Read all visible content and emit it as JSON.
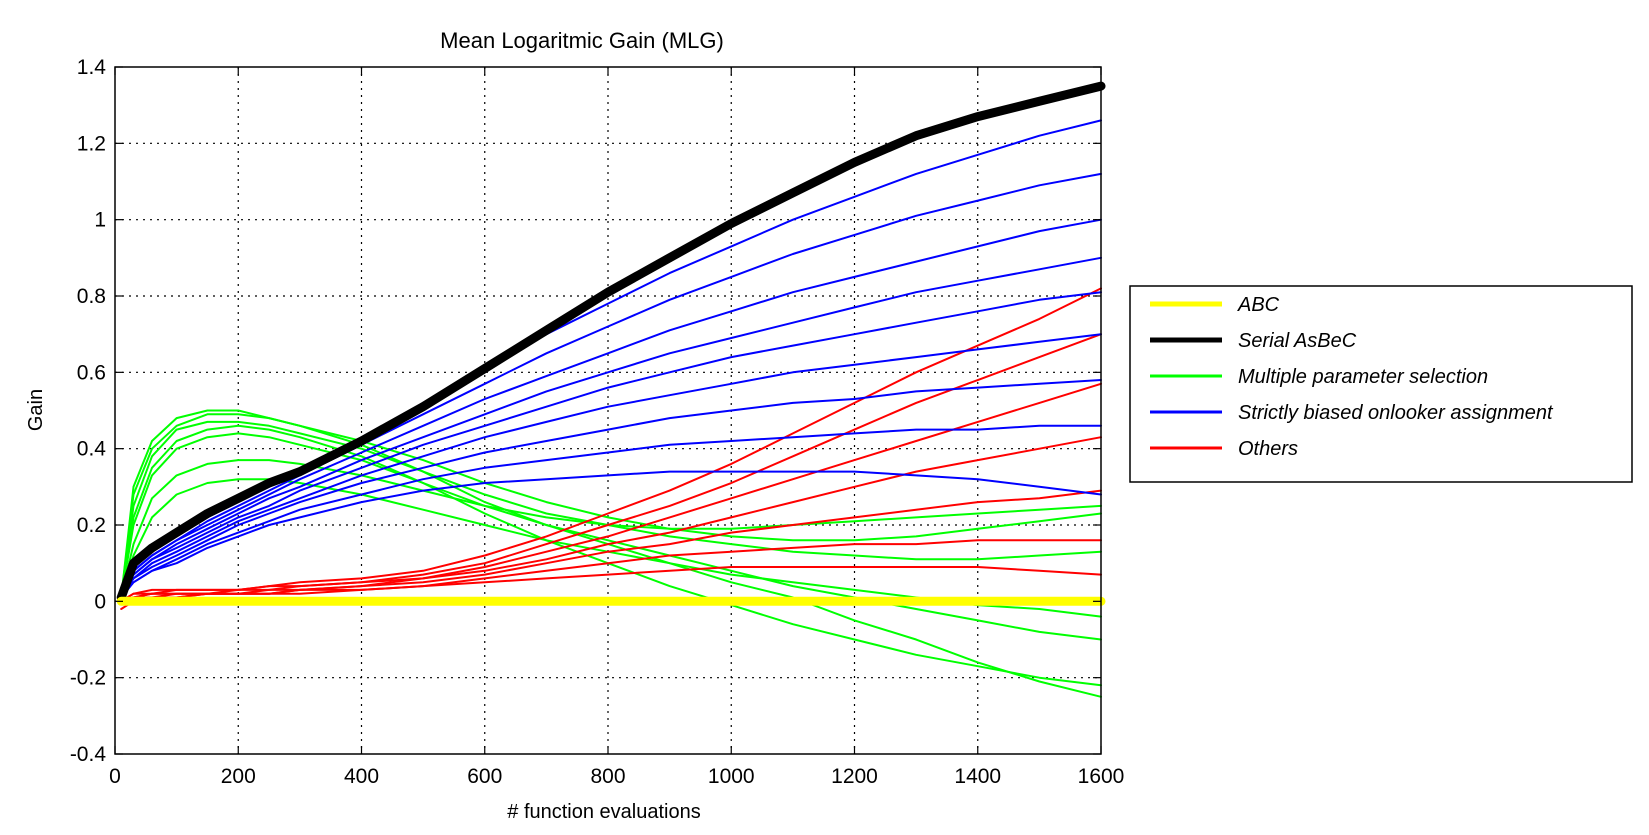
{
  "chart_data": {
    "type": "line",
    "title": "Mean Logaritmic Gain (MLG)",
    "xlabel": "# function evaluations",
    "ylabel": "Gain",
    "xlim": [
      0,
      1600
    ],
    "ylim": [
      -0.4,
      1.4
    ],
    "x_ticks": [
      "0",
      "200",
      "400",
      "600",
      "800",
      "1000",
      "1200",
      "1400",
      "1600"
    ],
    "y_ticks": [
      "-0.4",
      "-0.2",
      "0",
      "0.2",
      "0.4",
      "0.6",
      "0.8",
      "1",
      "1.2",
      "1.4"
    ],
    "grid": true,
    "legend_position": "outside-right",
    "x": [
      10,
      30,
      60,
      100,
      150,
      200,
      250,
      300,
      400,
      500,
      600,
      700,
      800,
      900,
      1000,
      1100,
      1200,
      1300,
      1400,
      1500,
      1600
    ],
    "series": [
      {
        "name": "ABC",
        "color": "#ffff00",
        "width": 9,
        "values": [
          0,
          0,
          0,
          0,
          0,
          0,
          0,
          0,
          0,
          0,
          0,
          0,
          0,
          0,
          0,
          0,
          0,
          0,
          0,
          0,
          0
        ]
      },
      {
        "name": "Serial AsBeC",
        "color": "#000000",
        "width": 9,
        "values": [
          0.01,
          0.1,
          0.14,
          0.18,
          0.23,
          0.27,
          0.31,
          0.34,
          0.42,
          0.51,
          0.61,
          0.71,
          0.81,
          0.9,
          0.99,
          1.07,
          1.15,
          1.22,
          1.27,
          1.31,
          1.35
        ]
      },
      {
        "name": "Multiple parameter selection",
        "color": "#00ff00",
        "width": 2,
        "group_values": [
          [
            0.01,
            0.3,
            0.42,
            0.48,
            0.5,
            0.5,
            0.48,
            0.46,
            0.41,
            0.34,
            0.26,
            0.2,
            0.15,
            0.1,
            0.05,
            0.01,
            -0.05,
            -0.1,
            -0.16,
            -0.21,
            -0.25
          ],
          [
            0.01,
            0.25,
            0.38,
            0.45,
            0.47,
            0.47,
            0.46,
            0.44,
            0.4,
            0.34,
            0.28,
            0.23,
            0.2,
            0.17,
            0.15,
            0.13,
            0.12,
            0.11,
            0.11,
            0.12,
            0.13
          ],
          [
            0.01,
            0.2,
            0.33,
            0.4,
            0.43,
            0.44,
            0.43,
            0.41,
            0.37,
            0.31,
            0.25,
            0.2,
            0.16,
            0.12,
            0.08,
            0.04,
            0.01,
            -0.02,
            -0.05,
            -0.08,
            -0.1
          ],
          [
            0.01,
            0.15,
            0.27,
            0.33,
            0.36,
            0.37,
            0.37,
            0.36,
            0.33,
            0.29,
            0.25,
            0.22,
            0.2,
            0.19,
            0.19,
            0.2,
            0.21,
            0.22,
            0.23,
            0.24,
            0.25
          ],
          [
            0.01,
            0.12,
            0.22,
            0.28,
            0.31,
            0.32,
            0.32,
            0.31,
            0.28,
            0.24,
            0.2,
            0.16,
            0.13,
            0.1,
            0.07,
            0.05,
            0.03,
            0.01,
            -0.01,
            -0.02,
            -0.04
          ],
          [
            0.01,
            0.28,
            0.4,
            0.46,
            0.49,
            0.49,
            0.48,
            0.46,
            0.42,
            0.37,
            0.31,
            0.26,
            0.22,
            0.19,
            0.17,
            0.16,
            0.16,
            0.17,
            0.19,
            0.21,
            0.23
          ],
          [
            0.01,
            0.22,
            0.35,
            0.42,
            0.45,
            0.46,
            0.45,
            0.43,
            0.38,
            0.31,
            0.23,
            0.16,
            0.1,
            0.04,
            -0.01,
            -0.06,
            -0.1,
            -0.14,
            -0.17,
            -0.2,
            -0.22
          ]
        ]
      },
      {
        "name": "Strictly biased onlooker assignment",
        "color": "#0000ff",
        "width": 2,
        "group_values": [
          [
            0.01,
            0.09,
            0.13,
            0.17,
            0.22,
            0.26,
            0.3,
            0.34,
            0.42,
            0.52,
            0.61,
            0.7,
            0.78,
            0.86,
            0.93,
            1.0,
            1.06,
            1.12,
            1.17,
            1.22,
            1.26
          ],
          [
            0.01,
            0.08,
            0.12,
            0.16,
            0.21,
            0.25,
            0.29,
            0.33,
            0.41,
            0.49,
            0.57,
            0.65,
            0.72,
            0.79,
            0.85,
            0.91,
            0.96,
            1.01,
            1.05,
            1.09,
            1.12
          ],
          [
            0.01,
            0.08,
            0.12,
            0.16,
            0.2,
            0.24,
            0.28,
            0.32,
            0.39,
            0.46,
            0.53,
            0.59,
            0.65,
            0.71,
            0.76,
            0.81,
            0.85,
            0.89,
            0.93,
            0.97,
            1.0
          ],
          [
            0.01,
            0.07,
            0.11,
            0.15,
            0.19,
            0.23,
            0.27,
            0.3,
            0.37,
            0.43,
            0.49,
            0.55,
            0.6,
            0.65,
            0.69,
            0.73,
            0.77,
            0.81,
            0.84,
            0.87,
            0.9
          ],
          [
            0.01,
            0.07,
            0.11,
            0.14,
            0.18,
            0.22,
            0.25,
            0.29,
            0.35,
            0.41,
            0.46,
            0.51,
            0.56,
            0.6,
            0.64,
            0.67,
            0.7,
            0.73,
            0.76,
            0.79,
            0.81
          ],
          [
            0.01,
            0.06,
            0.1,
            0.13,
            0.17,
            0.21,
            0.24,
            0.27,
            0.33,
            0.38,
            0.43,
            0.47,
            0.51,
            0.54,
            0.57,
            0.6,
            0.62,
            0.64,
            0.66,
            0.68,
            0.7
          ],
          [
            0.01,
            0.06,
            0.09,
            0.12,
            0.16,
            0.2,
            0.23,
            0.26,
            0.31,
            0.35,
            0.39,
            0.42,
            0.45,
            0.48,
            0.5,
            0.52,
            0.53,
            0.55,
            0.56,
            0.57,
            0.58
          ],
          [
            0.01,
            0.05,
            0.08,
            0.11,
            0.15,
            0.18,
            0.21,
            0.24,
            0.28,
            0.32,
            0.35,
            0.37,
            0.39,
            0.41,
            0.42,
            0.43,
            0.44,
            0.45,
            0.45,
            0.46,
            0.46
          ],
          [
            0.01,
            0.05,
            0.08,
            0.1,
            0.14,
            0.17,
            0.2,
            0.22,
            0.26,
            0.29,
            0.31,
            0.32,
            0.33,
            0.34,
            0.34,
            0.34,
            0.34,
            0.33,
            0.32,
            0.3,
            0.28
          ]
        ]
      },
      {
        "name": "Others",
        "color": "#ff0000",
        "width": 2,
        "group_values": [
          [
            0.0,
            0.02,
            0.03,
            0.03,
            0.03,
            0.03,
            0.04,
            0.05,
            0.06,
            0.08,
            0.12,
            0.17,
            0.23,
            0.29,
            0.36,
            0.44,
            0.52,
            0.6,
            0.67,
            0.74,
            0.82
          ],
          [
            0.0,
            0.02,
            0.02,
            0.03,
            0.03,
            0.03,
            0.04,
            0.04,
            0.05,
            0.07,
            0.1,
            0.15,
            0.2,
            0.25,
            0.31,
            0.38,
            0.45,
            0.52,
            0.58,
            0.64,
            0.7
          ],
          [
            0.0,
            0.01,
            0.02,
            0.02,
            0.02,
            0.03,
            0.03,
            0.04,
            0.05,
            0.06,
            0.09,
            0.13,
            0.17,
            0.22,
            0.27,
            0.32,
            0.37,
            0.42,
            0.47,
            0.52,
            0.57
          ],
          [
            0.0,
            0.01,
            0.02,
            0.02,
            0.02,
            0.02,
            0.03,
            0.03,
            0.04,
            0.06,
            0.08,
            0.11,
            0.15,
            0.18,
            0.22,
            0.26,
            0.3,
            0.34,
            0.37,
            0.4,
            0.43
          ],
          [
            0.0,
            0.01,
            0.01,
            0.02,
            0.02,
            0.02,
            0.02,
            0.03,
            0.04,
            0.05,
            0.07,
            0.1,
            0.13,
            0.15,
            0.18,
            0.2,
            0.22,
            0.24,
            0.26,
            0.27,
            0.29
          ],
          [
            -0.02,
            0.0,
            0.01,
            0.01,
            0.02,
            0.02,
            0.02,
            0.03,
            0.03,
            0.04,
            0.06,
            0.08,
            0.1,
            0.12,
            0.13,
            0.14,
            0.15,
            0.15,
            0.16,
            0.16,
            0.16
          ],
          [
            0.0,
            0.01,
            0.01,
            0.01,
            0.02,
            0.02,
            0.02,
            0.02,
            0.03,
            0.04,
            0.05,
            0.06,
            0.07,
            0.08,
            0.09,
            0.09,
            0.09,
            0.09,
            0.09,
            0.08,
            0.07
          ]
        ]
      }
    ]
  }
}
